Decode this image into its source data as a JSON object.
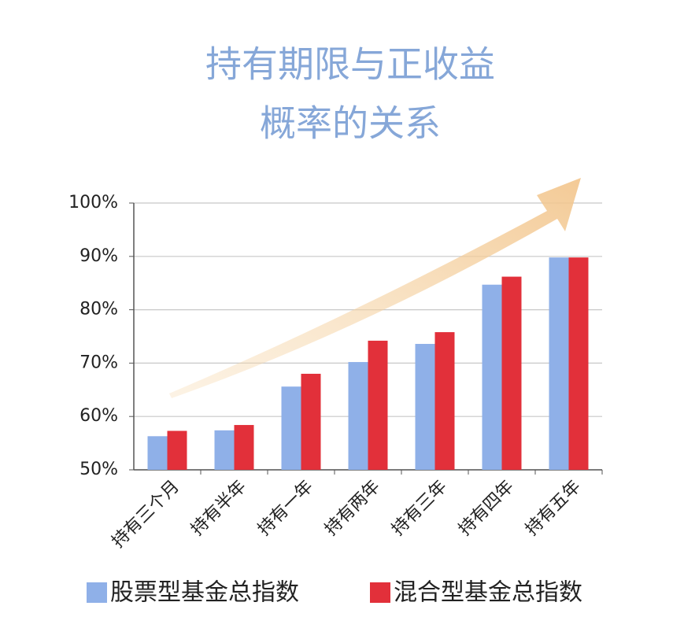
{
  "chart_data": {
    "type": "bar",
    "title": [
      "持有期限与正收益",
      "概率的关系"
    ],
    "categories": [
      "持有三个月",
      "持有半年",
      "持有一年",
      "持有两年",
      "持有三年",
      "持有四年",
      "持有五年"
    ],
    "series": [
      {
        "name": "股票型基金总指数",
        "color": "#8fb0e8",
        "values": [
          56.3,
          57.4,
          65.6,
          70.2,
          73.6,
          84.7,
          89.8
        ]
      },
      {
        "name": "混合型基金总指数",
        "color": "#e2303a",
        "values": [
          57.3,
          58.4,
          68.0,
          74.2,
          75.8,
          86.2,
          89.8
        ]
      }
    ],
    "ylim": [
      50,
      100
    ],
    "yticks": [
      {
        "value": 50,
        "label": "50%"
      },
      {
        "value": 60,
        "label": "60%"
      },
      {
        "value": 70,
        "label": "70%"
      },
      {
        "value": 80,
        "label": "80%"
      },
      {
        "value": 90,
        "label": "90%"
      },
      {
        "value": 100,
        "label": "100%"
      }
    ],
    "grid": true
  }
}
